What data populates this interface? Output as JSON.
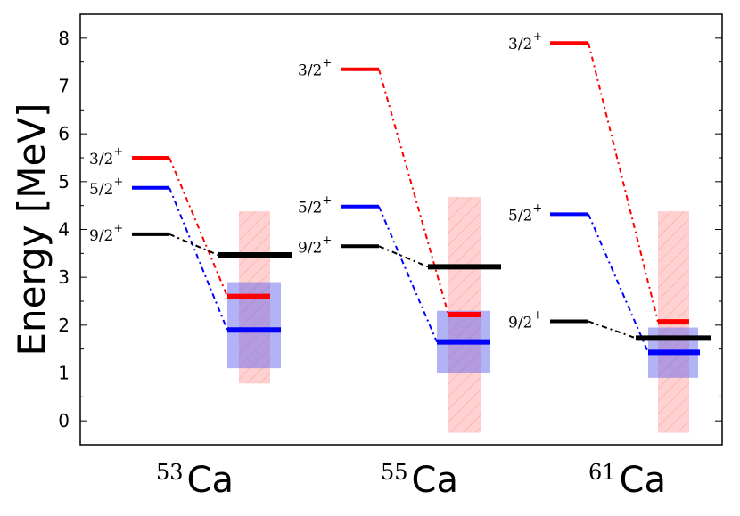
{
  "chart_data": {
    "type": "level-scheme",
    "ylabel": "Energy [MeV]",
    "ylim": [
      -0.5,
      8.5
    ],
    "yticks": [
      0,
      1,
      2,
      3,
      4,
      5,
      6,
      7,
      8
    ],
    "grid": false,
    "colors": {
      "3/2+": "#ff0000",
      "5/2+": "#0000ff",
      "9/2+": "#000000"
    },
    "band_colors": {
      "wide_band": "#ff9999",
      "narrow_band": "#6666ee"
    },
    "nuclei": [
      {
        "mass": "53",
        "symbol": "Ca",
        "levels": [
          {
            "label": "3/2",
            "parity": "+",
            "key": "3/2+",
            "left": 5.5,
            "right": 2.6
          },
          {
            "label": "5/2",
            "parity": "+",
            "key": "5/2+",
            "left": 4.87,
            "right": 1.9
          },
          {
            "label": "9/2",
            "parity": "+",
            "key": "9/2+",
            "left": 3.9,
            "right": 3.47
          }
        ],
        "wide_band": [
          0.78,
          4.38
        ],
        "narrow_band": [
          1.1,
          2.9
        ]
      },
      {
        "mass": "55",
        "symbol": "Ca",
        "levels": [
          {
            "label": "3/2",
            "parity": "+",
            "key": "3/2+",
            "left": 7.35,
            "right": 2.22
          },
          {
            "label": "5/2",
            "parity": "+",
            "key": "5/2+",
            "left": 4.48,
            "right": 1.65
          },
          {
            "label": "9/2",
            "parity": "+",
            "key": "9/2+",
            "left": 3.65,
            "right": 3.22
          }
        ],
        "wide_band": [
          -0.25,
          4.68
        ],
        "narrow_band": [
          1.0,
          2.3
        ]
      },
      {
        "mass": "61",
        "symbol": "Ca",
        "levels": [
          {
            "label": "3/2",
            "parity": "+",
            "key": "3/2+",
            "left": 7.9,
            "right": 2.07
          },
          {
            "label": "5/2",
            "parity": "+",
            "key": "5/2+",
            "left": 4.32,
            "right": 1.43
          },
          {
            "label": "9/2",
            "parity": "+",
            "key": "9/2+",
            "left": 2.08,
            "right": 1.73
          }
        ],
        "wide_band": [
          -0.25,
          4.38
        ],
        "narrow_band": [
          0.9,
          1.95
        ]
      }
    ]
  }
}
